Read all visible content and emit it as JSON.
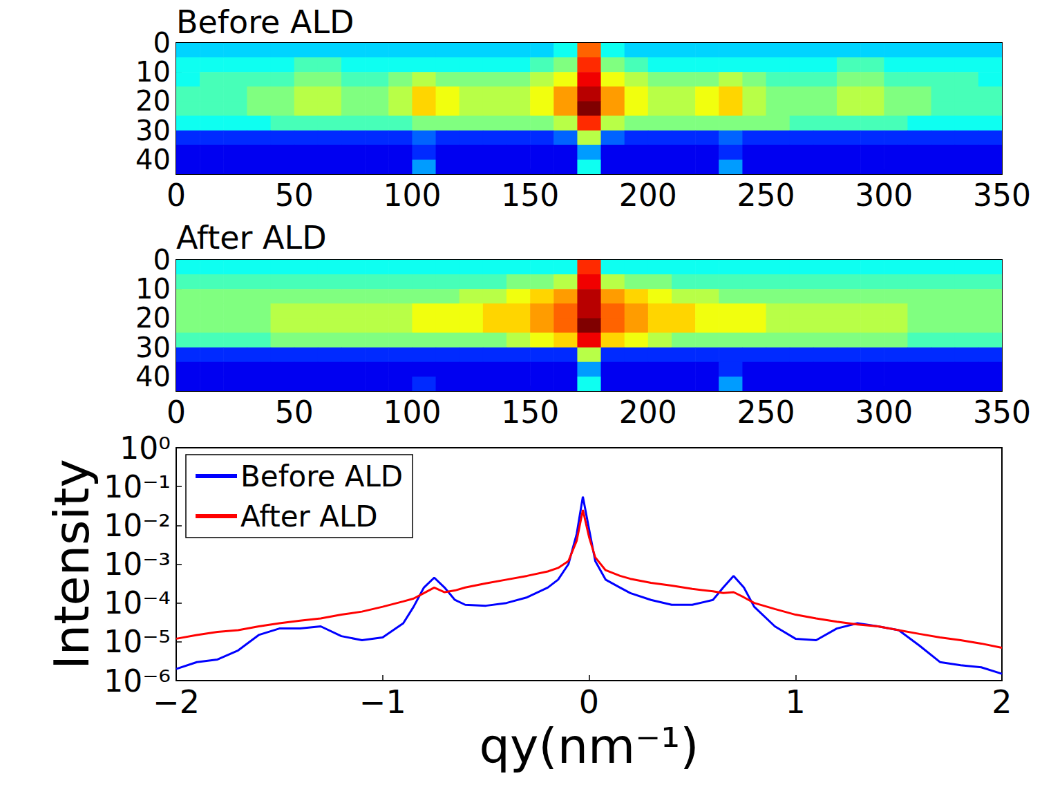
{
  "chart_data": [
    {
      "type": "heatmap",
      "title": "Before ALD",
      "x": [
        5,
        15,
        25,
        35,
        45,
        55,
        65,
        75,
        85,
        95,
        105,
        115,
        125,
        135,
        145,
        155,
        165,
        175,
        185,
        195,
        205,
        215,
        225,
        235,
        245,
        255,
        265,
        275,
        285,
        295,
        305,
        315,
        325,
        335,
        345
      ],
      "y": [
        2.5,
        7.5,
        12.5,
        17.5,
        22.5,
        27.5,
        32.5,
        37.5,
        42.5
      ],
      "cells": [
        [
          3,
          3,
          3,
          3,
          3,
          3,
          3,
          3,
          3,
          3,
          3,
          3,
          3,
          3,
          3,
          3,
          3.5,
          7,
          3.5,
          3,
          3,
          3,
          3,
          3,
          3,
          3,
          3,
          3,
          3,
          3,
          3,
          3,
          3,
          3,
          3
        ],
        [
          3.5,
          3.5,
          3.5,
          3.5,
          3.5,
          4,
          4,
          3.5,
          3.5,
          3.5,
          3.5,
          3.5,
          3.5,
          3.5,
          3.5,
          4,
          4.5,
          7.5,
          4.5,
          4,
          3.5,
          3.5,
          3.5,
          3.5,
          3.5,
          3.5,
          3.5,
          3.5,
          4,
          4,
          3.5,
          3.5,
          3.5,
          3.5,
          3.5
        ],
        [
          3.5,
          4,
          4,
          4,
          4,
          4.5,
          4.5,
          4,
          4,
          4.5,
          5,
          4.5,
          4.5,
          4.5,
          4.5,
          5,
          5.5,
          8,
          5.5,
          5,
          4.5,
          4.5,
          4.5,
          5,
          4.5,
          4,
          4,
          4,
          4.5,
          4.5,
          4,
          4,
          4,
          4,
          3.5
        ],
        [
          4,
          4,
          4,
          4.5,
          4.5,
          5,
          5,
          4.5,
          4.5,
          5,
          6,
          5.5,
          5,
          5,
          5,
          5.5,
          6.5,
          8.5,
          6.5,
          5.5,
          5,
          5,
          5.5,
          6,
          5,
          4.5,
          4.5,
          4.5,
          5,
          5,
          4.5,
          4.5,
          4,
          4,
          4
        ],
        [
          4,
          4,
          4,
          4.5,
          4.5,
          5,
          5,
          4.5,
          4.5,
          5,
          6,
          5.5,
          5,
          5,
          5,
          5.5,
          6.5,
          9,
          6.5,
          5.5,
          5,
          5,
          5.5,
          6,
          5,
          4.5,
          4.5,
          4.5,
          5,
          5,
          4.5,
          4.5,
          4,
          4,
          4
        ],
        [
          3.5,
          3.5,
          3.5,
          3.5,
          4,
          4,
          4,
          4,
          4,
          4,
          4.5,
          4.5,
          4.5,
          4.5,
          4.5,
          4.5,
          5,
          7.5,
          5,
          4.5,
          4.5,
          4.5,
          4.5,
          4.5,
          4.5,
          4.5,
          4,
          4,
          4,
          4,
          4,
          3.5,
          3.5,
          3.5,
          3.5
        ],
        [
          1.5,
          1.5,
          1.5,
          1.5,
          1.5,
          1.5,
          1.5,
          1.5,
          1.5,
          1.5,
          2,
          1.5,
          1.5,
          1.5,
          1.5,
          1.5,
          2,
          5,
          2,
          1.5,
          1.5,
          1.5,
          1.5,
          2,
          1.5,
          1.5,
          1.5,
          1.5,
          1.5,
          1.5,
          1.5,
          1.5,
          1.5,
          1.5,
          1.5
        ],
        [
          1,
          1,
          1,
          1,
          1,
          1,
          1,
          1,
          1,
          1,
          1.5,
          1,
          1,
          1,
          1,
          1,
          1,
          2.5,
          1,
          1,
          1,
          1,
          1,
          1.5,
          1,
          1,
          1,
          1,
          1,
          1,
          1,
          1,
          1,
          1,
          1
        ],
        [
          1,
          1,
          1,
          1,
          1,
          1,
          1,
          1,
          1,
          1,
          2.5,
          1,
          1,
          1,
          1,
          1,
          1,
          3.5,
          1,
          1,
          1,
          1,
          1,
          2.5,
          1,
          1,
          1,
          1,
          1,
          1,
          1,
          1,
          1,
          1,
          1
        ]
      ],
      "zlim": [
        0,
        9
      ],
      "xlim": [
        0,
        350
      ],
      "xticks": [
        0,
        50,
        100,
        150,
        200,
        250,
        300,
        350
      ],
      "ylim": [
        45,
        0
      ],
      "yticks": [
        0,
        10,
        20,
        30,
        40
      ],
      "grid": false
    },
    {
      "type": "heatmap",
      "title": "After ALD",
      "x": [
        5,
        15,
        25,
        35,
        45,
        55,
        65,
        75,
        85,
        95,
        105,
        115,
        125,
        135,
        145,
        155,
        165,
        175,
        185,
        195,
        205,
        215,
        225,
        235,
        245,
        255,
        265,
        275,
        285,
        295,
        305,
        315,
        325,
        335,
        345
      ],
      "y": [
        2.5,
        7.5,
        12.5,
        17.5,
        22.5,
        27.5,
        32.5,
        37.5,
        42.5
      ],
      "cells": [
        [
          3.5,
          3.5,
          3.5,
          3.5,
          3.5,
          3.5,
          3.5,
          3.5,
          3.5,
          3.5,
          3.5,
          3.5,
          3.5,
          3.5,
          3.5,
          3.5,
          3.5,
          7.5,
          3.5,
          3.5,
          3.5,
          3.5,
          3.5,
          3.5,
          3.5,
          3.5,
          3.5,
          3.5,
          3.5,
          3.5,
          3.5,
          3.5,
          3.5,
          3.5,
          3.5
        ],
        [
          4,
          4,
          4,
          4,
          4,
          4,
          4,
          4,
          4,
          4,
          4,
          4,
          4,
          4,
          4.5,
          4.5,
          5,
          8,
          5,
          4.5,
          4.5,
          4,
          4,
          4,
          4,
          4,
          4,
          4,
          4,
          4,
          4,
          4,
          4,
          4,
          4
        ],
        [
          4.5,
          4.5,
          4.5,
          4.5,
          4.5,
          4.5,
          4.5,
          4.5,
          4.5,
          4.5,
          4.5,
          4.5,
          5,
          5,
          5.5,
          6,
          6.5,
          8.5,
          6.5,
          6,
          5.5,
          5,
          5,
          4.5,
          4.5,
          4.5,
          4.5,
          4.5,
          4.5,
          4.5,
          4.5,
          4.5,
          4.5,
          4.5,
          4.5
        ],
        [
          4.5,
          4.5,
          4.5,
          4.5,
          5,
          5,
          5,
          5,
          5,
          5,
          5.5,
          5.5,
          5.5,
          6,
          6,
          6.5,
          7,
          8.5,
          7,
          6.5,
          6,
          6,
          5.5,
          5.5,
          5.5,
          5,
          5,
          5,
          5,
          5,
          5,
          4.5,
          4.5,
          4.5,
          4.5
        ],
        [
          4.5,
          4.5,
          4.5,
          4.5,
          5,
          5,
          5,
          5,
          5,
          5,
          5.5,
          5.5,
          5.5,
          6,
          6,
          6.5,
          7,
          9,
          7,
          6.5,
          6,
          6,
          5.5,
          5.5,
          5.5,
          5,
          5,
          5,
          5,
          5,
          5,
          4.5,
          4.5,
          4.5,
          4.5
        ],
        [
          4,
          4,
          4,
          4,
          4.5,
          4.5,
          4.5,
          4.5,
          4.5,
          4.5,
          4.5,
          4.5,
          4.5,
          4.5,
          5,
          5.5,
          6,
          8,
          6,
          5.5,
          5,
          4.5,
          4.5,
          4.5,
          4.5,
          4.5,
          4.5,
          4.5,
          4.5,
          4.5,
          4.5,
          4,
          4,
          4,
          4
        ],
        [
          1.5,
          1.5,
          1.5,
          1.5,
          1.5,
          1.5,
          1.5,
          1.5,
          1.5,
          1.5,
          1.5,
          1.5,
          1.5,
          1.5,
          1.5,
          1.5,
          1.5,
          5,
          1.5,
          1.5,
          1.5,
          1.5,
          1.5,
          1.5,
          1.5,
          1.5,
          1.5,
          1.5,
          1.5,
          1.5,
          1.5,
          1.5,
          1.5,
          1.5,
          1.5
        ],
        [
          1,
          1,
          1,
          1,
          1,
          1,
          1,
          1,
          1,
          1,
          1,
          1,
          1,
          1,
          1,
          1,
          1,
          2.5,
          1,
          1,
          1,
          1,
          1,
          1.5,
          1,
          1,
          1,
          1,
          1,
          1,
          1,
          1,
          1,
          1,
          1
        ],
        [
          1,
          1,
          1,
          1,
          1,
          1,
          1,
          1,
          1,
          1,
          1.5,
          1,
          1,
          1,
          1,
          1,
          1,
          3.5,
          1,
          1,
          1,
          1,
          1,
          2.5,
          1,
          1,
          1,
          1,
          1,
          1,
          1,
          1,
          1,
          1,
          1
        ]
      ],
      "zlim": [
        0,
        9
      ],
      "xlim": [
        0,
        350
      ],
      "xticks": [
        0,
        50,
        100,
        150,
        200,
        250,
        300,
        350
      ],
      "ylim": [
        45,
        0
      ],
      "yticks": [
        0,
        10,
        20,
        30,
        40
      ],
      "grid": false
    },
    {
      "type": "line",
      "xlabel": "qy(nm⁻¹)",
      "ylabel": "Intensity",
      "x": [
        -2,
        -1.9,
        -1.8,
        -1.7,
        -1.6,
        -1.5,
        -1.4,
        -1.3,
        -1.2,
        -1.1,
        -1.0,
        -0.9,
        -0.85,
        -0.8,
        -0.75,
        -0.7,
        -0.65,
        -0.6,
        -0.5,
        -0.4,
        -0.3,
        -0.2,
        -0.15,
        -0.1,
        -0.06,
        -0.03,
        0,
        0.03,
        0.08,
        0.15,
        0.2,
        0.3,
        0.4,
        0.5,
        0.6,
        0.65,
        0.7,
        0.75,
        0.8,
        0.9,
        1.0,
        1.1,
        1.2,
        1.3,
        1.4,
        1.5,
        1.6,
        1.7,
        1.8,
        1.9,
        2.0
      ],
      "series": [
        {
          "name": "Before ALD",
          "color": "#0000ff",
          "values": [
            2e-06,
            3e-06,
            3.5e-06,
            6e-06,
            1.5e-05,
            2.2e-05,
            2.2e-05,
            2.5e-05,
            1.4e-05,
            1.1e-05,
            1.3e-05,
            3e-05,
            8e-05,
            0.00025,
            0.00045,
            0.00025,
            0.00012,
            9e-05,
            8.5e-05,
            0.0001,
            0.00014,
            0.00025,
            0.0004,
            0.001,
            0.006,
            0.055,
            0.008,
            0.0012,
            0.0004,
            0.00025,
            0.00018,
            0.00012,
            9e-05,
            9e-05,
            0.00012,
            0.00025,
            0.0005,
            0.00025,
            8e-05,
            2.5e-05,
            1.2e-05,
            1.1e-05,
            2.2e-05,
            3e-05,
            2.5e-05,
            2e-05,
            8e-06,
            3e-06,
            2.5e-06,
            2.2e-06,
            1.5e-06
          ]
        },
        {
          "name": "After ALD",
          "color": "#ff0000",
          "values": [
            1.2e-05,
            1.5e-05,
            1.8e-05,
            2e-05,
            2.5e-05,
            3e-05,
            3.5e-05,
            4e-05,
            5e-05,
            6e-05,
            8e-05,
            0.00011,
            0.00013,
            0.00018,
            0.00025,
            0.00019,
            0.00021,
            0.00025,
            0.00032,
            0.0004,
            0.0005,
            0.00065,
            0.0008,
            0.0012,
            0.004,
            0.025,
            0.005,
            0.0015,
            0.0007,
            0.0005,
            0.00042,
            0.00033,
            0.00028,
            0.00023,
            0.0002,
            0.00018,
            0.00019,
            0.00014,
            0.0001,
            7e-05,
            5e-05,
            4e-05,
            3.3e-05,
            2.8e-05,
            2.5e-05,
            2e-05,
            1.6e-05,
            1.3e-05,
            1.1e-05,
            9e-06,
            7e-06
          ]
        }
      ],
      "xlim": [
        -2,
        2
      ],
      "xticks": [
        {
          "value": -2,
          "label": "−2"
        },
        {
          "value": -1,
          "label": "−1"
        },
        0,
        1,
        2
      ],
      "ylim": [
        1e-06,
        1
      ],
      "yticks": [
        {
          "value": 1e-06,
          "label": "10⁻⁶"
        },
        {
          "value": 1e-05,
          "label": "10⁻⁵"
        },
        {
          "value": 0.0001,
          "label": "10⁻⁴"
        },
        {
          "value": 0.001,
          "label": "10⁻³"
        },
        {
          "value": 0.01,
          "label": "10⁻²"
        },
        {
          "value": 0.1,
          "label": "10⁻¹"
        },
        {
          "value": 1,
          "label": "10⁰"
        }
      ],
      "log": "y",
      "legend": "upper left",
      "grid": false
    }
  ]
}
